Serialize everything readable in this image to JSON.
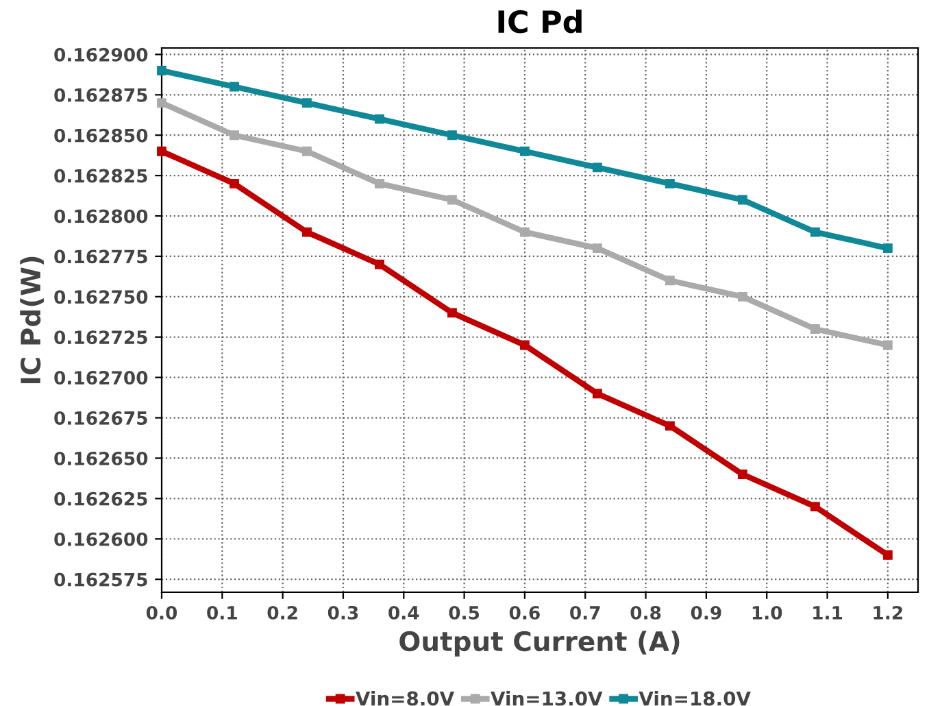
{
  "chart_data": {
    "type": "line",
    "title": "IC Pd",
    "xlabel": "Output Current (A)",
    "ylabel": "IC Pd(W)",
    "x": [
      0,
      0.12,
      0.24,
      0.36,
      0.48,
      0.6,
      0.72,
      0.84,
      0.96,
      1.08,
      1.2
    ],
    "series": [
      {
        "name": "Vin=8.0V",
        "color": "#c00000",
        "values": [
          0.16284,
          0.16282,
          0.16279,
          0.16277,
          0.16274,
          0.16272,
          0.16269,
          0.16267,
          0.16264,
          0.16262,
          0.16259
        ]
      },
      {
        "name": "Vin=13.0V",
        "color": "#aaaaaa",
        "values": [
          0.16287,
          0.16285,
          0.16284,
          0.16282,
          0.16281,
          0.16279,
          0.16278,
          0.16276,
          0.16275,
          0.16273,
          0.16272
        ]
      },
      {
        "name": "Vin=18.0V",
        "color": "#108898",
        "values": [
          0.16289,
          0.16288,
          0.16287,
          0.16286,
          0.16285,
          0.16284,
          0.16283,
          0.16282,
          0.16281,
          0.16279,
          0.16278
        ]
      }
    ],
    "xlim": [
      0,
      1.25
    ],
    "xticks": [
      {
        "value": 0,
        "label": "0.0"
      },
      0.1,
      0.2,
      0.3,
      0.4,
      0.5,
      0.6,
      0.7,
      0.8,
      0.9,
      {
        "value": 1.0,
        "label": "1.0"
      },
      1.1,
      1.2
    ],
    "ylim": [
      0.162567,
      0.162904
    ],
    "yticks": [
      {
        "value": 0.162575,
        "label": "0.162575"
      },
      {
        "value": 0.1626,
        "label": "0.162600"
      },
      {
        "value": 0.162625,
        "label": "0.162625"
      },
      {
        "value": 0.16265,
        "label": "0.162650"
      },
      {
        "value": 0.162675,
        "label": "0.162675"
      },
      {
        "value": 0.1627,
        "label": "0.162700"
      },
      {
        "value": 0.162725,
        "label": "0.162725"
      },
      {
        "value": 0.16275,
        "label": "0.162750"
      },
      {
        "value": 0.162775,
        "label": "0.162775"
      },
      {
        "value": 0.1628,
        "label": "0.162800"
      },
      {
        "value": 0.162825,
        "label": "0.162825"
      },
      {
        "value": 0.16285,
        "label": "0.162850"
      },
      {
        "value": 0.162875,
        "label": "0.162875"
      },
      {
        "value": 0.1629,
        "label": "0.162900"
      }
    ],
    "grid": true,
    "legend": "bottom",
    "marker": "square",
    "line_style": "solid"
  }
}
